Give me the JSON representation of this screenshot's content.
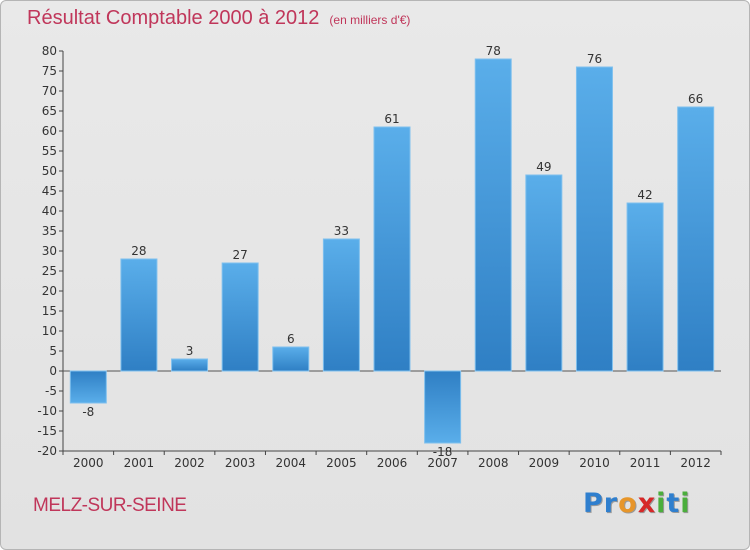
{
  "chart_data": {
    "type": "bar",
    "title": "Résultat Comptable 2000 à 2012",
    "subtitle": "(en milliers d'€)",
    "xlabel": "",
    "ylabel": "",
    "categories": [
      "2000",
      "2001",
      "2002",
      "2003",
      "2004",
      "2005",
      "2006",
      "2007",
      "2008",
      "2009",
      "2010",
      "2011",
      "2012"
    ],
    "values": [
      -8,
      28,
      3,
      27,
      6,
      33,
      61,
      -18,
      78,
      49,
      76,
      42,
      66
    ],
    "value_labels": [
      "-8",
      "28",
      "3",
      "27",
      "6",
      "33",
      "61",
      "-18",
      "78",
      "49",
      "76",
      "42",
      "66"
    ],
    "ylim": [
      -20,
      80
    ],
    "yticks": [
      -20,
      -15,
      -10,
      -5,
      0,
      5,
      10,
      15,
      20,
      25,
      30,
      35,
      40,
      45,
      50,
      55,
      60,
      65,
      70,
      75,
      80
    ],
    "ytick_labels": [
      "-20",
      "-15",
      "-10",
      "-5",
      "0",
      "5",
      "10",
      "15",
      "20",
      "25",
      "30",
      "35",
      "40",
      "45",
      "50",
      "55",
      "60",
      "65",
      "70",
      "75",
      "80"
    ],
    "grid": false,
    "bar_color": "#3d8fd6",
    "bar_color_light": "#5aaeea"
  },
  "footer": {
    "commune": "MELZ-SUR-SEINE",
    "logo_letters": [
      "P",
      "r",
      "o",
      "x",
      "i",
      "t",
      "i"
    ],
    "logo_colors": [
      "#2f7fce",
      "#2f7fce",
      "#e7962a",
      "#d62828",
      "#4bae3c",
      "#2f7fce",
      "#4bae3c"
    ]
  },
  "colors": {
    "title": "#c0365a",
    "axis": "#444444",
    "background": "#e6e6e6"
  }
}
